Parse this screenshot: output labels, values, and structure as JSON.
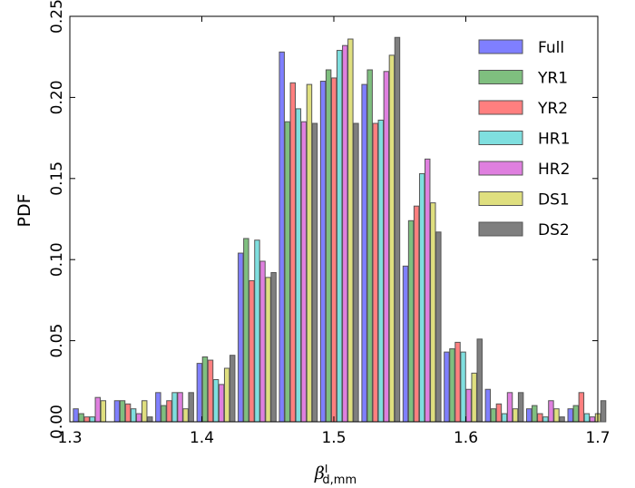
{
  "chart_data": {
    "type": "bar",
    "title": "",
    "xlabel": "β",
    "xlabel_sup": "I",
    "xlabel_sub": "d,mm",
    "ylabel": "PDF",
    "xlim": [
      1.3,
      1.7
    ],
    "ylim": [
      0.0,
      0.25
    ],
    "xticks": [
      "1.3",
      "1.4",
      "1.5",
      "1.6",
      "1.7"
    ],
    "yticks": [
      "0.00",
      "0.05",
      "0.10",
      "0.15",
      "0.20",
      "0.25"
    ],
    "grid": false,
    "legend_position": "top-right",
    "bin_centers": [
      1.3172,
      1.3484,
      1.3796,
      1.4109,
      1.4421,
      1.4733,
      1.5045,
      1.5358,
      1.567,
      1.5982,
      1.6294,
      1.6606,
      1.6919
    ],
    "bin_width": 0.0312,
    "series": [
      {
        "name": "Full",
        "color": "#0000ff",
        "values": [
          0.008,
          0.013,
          0.018,
          0.036,
          0.104,
          0.228,
          0.21,
          0.208,
          0.096,
          0.043,
          0.02,
          0.008,
          0.008
        ]
      },
      {
        "name": "YR1",
        "color": "#008000",
        "values": [
          0.005,
          0.013,
          0.01,
          0.04,
          0.113,
          0.185,
          0.217,
          0.217,
          0.124,
          0.045,
          0.008,
          0.01,
          0.01
        ]
      },
      {
        "name": "YR2",
        "color": "#ff0000",
        "values": [
          0.003,
          0.011,
          0.013,
          0.038,
          0.087,
          0.209,
          0.212,
          0.184,
          0.133,
          0.049,
          0.011,
          0.005,
          0.018
        ]
      },
      {
        "name": "HR1",
        "color": "#00bfbf",
        "values": [
          0.003,
          0.008,
          0.018,
          0.026,
          0.112,
          0.193,
          0.229,
          0.186,
          0.153,
          0.043,
          0.005,
          0.003,
          0.005
        ]
      },
      {
        "name": "HR2",
        "color": "#bf00bf",
        "values": [
          0.015,
          0.005,
          0.018,
          0.023,
          0.099,
          0.185,
          0.232,
          0.216,
          0.162,
          0.02,
          0.018,
          0.013,
          0.003
        ]
      },
      {
        "name": "DS1",
        "color": "#bfbf00",
        "values": [
          0.013,
          0.013,
          0.008,
          0.033,
          0.089,
          0.208,
          0.236,
          0.226,
          0.135,
          0.03,
          0.008,
          0.008,
          0.005
        ]
      },
      {
        "name": "DS2",
        "color": "#000000",
        "values": [
          0.0,
          0.003,
          0.018,
          0.041,
          0.092,
          0.184,
          0.184,
          0.237,
          0.117,
          0.051,
          0.018,
          0.003,
          0.013
        ]
      }
    ]
  }
}
